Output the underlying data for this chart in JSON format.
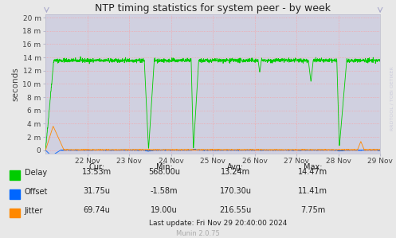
{
  "title": "NTP timing statistics for system peer - by week",
  "ylabel": "seconds",
  "bg_color": "#e8e8e8",
  "plot_bg_color": "#d0d0e0",
  "grid_color": "#ff9999",
  "ytick_labels": [
    "0",
    "2 m",
    "4 m",
    "6 m",
    "8 m",
    "10 m",
    "12 m",
    "14 m",
    "16 m",
    "18 m",
    "20 m"
  ],
  "ytick_values": [
    0,
    0.002,
    0.004,
    0.006,
    0.008,
    0.01,
    0.012,
    0.014,
    0.016,
    0.018,
    0.02
  ],
  "ylim": [
    -0.0005,
    0.0205
  ],
  "xtick_labels": [
    "22 Nov",
    "23 Nov",
    "24 Nov",
    "25 Nov",
    "26 Nov",
    "27 Nov",
    "28 Nov",
    "29 Nov"
  ],
  "legend_items": [
    {
      "label": "Delay",
      "color": "#00cc00"
    },
    {
      "label": "Offset",
      "color": "#0066ff"
    },
    {
      "label": "Jitter",
      "color": "#ff8800"
    }
  ],
  "stats_headers": [
    "Cur:",
    "Min:",
    "Avg:",
    "Max:"
  ],
  "stats_rows": [
    [
      "Delay",
      "13.53m",
      "568.00u",
      "13.24m",
      "14.47m"
    ],
    [
      "Offset",
      "31.75u",
      "-1.58m",
      "170.30u",
      "11.41m"
    ],
    [
      "Jitter",
      "69.74u",
      "19.00u",
      "216.55u",
      "7.75m"
    ]
  ],
  "last_update": "Last update: Fri Nov 29 20:40:00 2024",
  "watermark": "RRDTOOL / TOBI OETIKER",
  "munin_version": "Munin 2.0.75",
  "delay_color": "#00cc00",
  "offset_color": "#0066ff",
  "jitter_color": "#ff8800"
}
